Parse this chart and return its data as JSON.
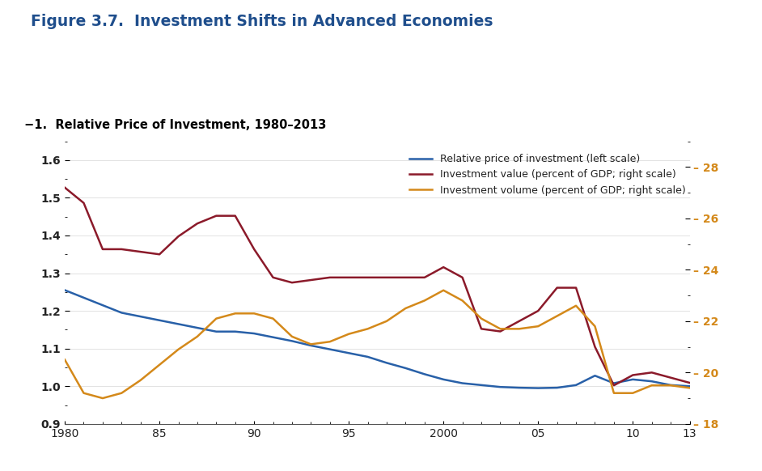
{
  "title": "Figure 3.7.  Investment Shifts in Advanced Economies",
  "subtitle": "−1.  Relative Price of Investment, 1980–2013",
  "title_color": "#1F4E8C",
  "subtitle_color": "#000000",
  "background_color": "#FFFFFF",
  "years": [
    1980,
    1981,
    1982,
    1983,
    1984,
    1985,
    1986,
    1987,
    1988,
    1989,
    1990,
    1991,
    1992,
    1993,
    1994,
    1995,
    1996,
    1997,
    1998,
    1999,
    2000,
    2001,
    2002,
    2003,
    2004,
    2005,
    2006,
    2007,
    2008,
    2009,
    2010,
    2011,
    2012,
    2013
  ],
  "blue_line": [
    1.255,
    1.235,
    1.215,
    1.195,
    1.185,
    1.175,
    1.165,
    1.155,
    1.145,
    1.145,
    1.14,
    1.13,
    1.12,
    1.108,
    1.098,
    1.088,
    1.078,
    1.062,
    1.048,
    1.032,
    1.018,
    1.008,
    1.003,
    0.998,
    0.996,
    0.995,
    0.996,
    1.003,
    1.028,
    1.008,
    1.018,
    1.013,
    1.003,
    1.0
  ],
  "red_line": [
    27.2,
    26.6,
    24.8,
    24.8,
    24.7,
    24.6,
    25.3,
    25.8,
    26.1,
    26.1,
    24.8,
    23.7,
    23.5,
    23.6,
    23.7,
    23.7,
    23.7,
    23.7,
    23.7,
    23.7,
    24.1,
    23.7,
    21.7,
    21.6,
    22.0,
    22.4,
    23.3,
    23.3,
    21.0,
    19.5,
    19.9,
    20.0,
    19.8,
    19.6
  ],
  "orange_line": [
    20.5,
    19.2,
    19.0,
    19.2,
    19.7,
    20.3,
    20.9,
    21.4,
    22.1,
    22.3,
    22.3,
    22.1,
    21.4,
    21.1,
    21.2,
    21.5,
    21.7,
    22.0,
    22.5,
    22.8,
    23.2,
    22.8,
    22.1,
    21.7,
    21.7,
    21.8,
    22.2,
    22.6,
    21.8,
    19.2,
    19.2,
    19.5,
    19.5,
    19.4
  ],
  "left_ylim": [
    0.9,
    1.65
  ],
  "right_ylim": [
    18,
    29
  ],
  "left_yticks": [
    0.9,
    1.0,
    1.1,
    1.2,
    1.3,
    1.4,
    1.5,
    1.6
  ],
  "right_yticks": [
    18,
    20,
    22,
    24,
    26,
    28
  ],
  "xticks": [
    1980,
    1985,
    1990,
    1995,
    2000,
    2005,
    2010,
    2013
  ],
  "xticklabels": [
    "1980",
    "85",
    "90",
    "95",
    "2000",
    "05",
    "10",
    "13"
  ],
  "xlim": [
    1980,
    2013
  ],
  "blue_label": "Relative price of investment (left scale)",
  "red_label": "Investment value (percent of GDP; right scale)",
  "orange_label": "Investment volume (percent of GDP; right scale)",
  "blue_color": "#2860A8",
  "red_color": "#8B1A2A",
  "orange_color": "#D4891A",
  "right_label_color": "#D4891A",
  "left_label_color": "#1F4E8C",
  "line_width": 1.8
}
